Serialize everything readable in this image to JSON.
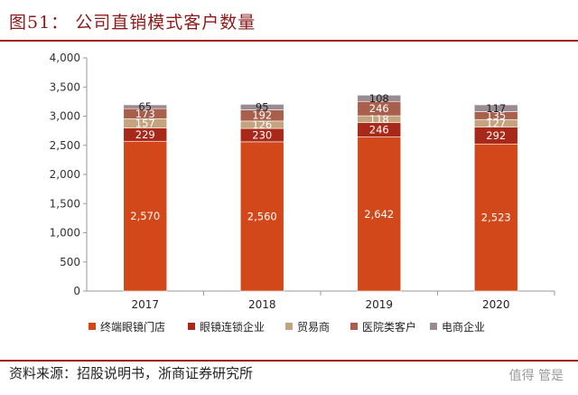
{
  "header": {
    "title": "图51：  公司直销模式客户数量"
  },
  "footer": {
    "source": "资料来源：招股说明书，浙商证券研究所",
    "watermark": "值得 管是"
  },
  "colors": {
    "s0": "#d2481a",
    "s1": "#a8281a",
    "s2": "#c4a37f",
    "s3": "#a8604d",
    "s4": "#9a8b93",
    "axis": "#9a9a9a",
    "rule": "#a01c1c"
  },
  "chart_data": {
    "type": "bar",
    "stacked": true,
    "title": "",
    "xlabel": "",
    "ylabel": "",
    "ylim": [
      0,
      4000
    ],
    "yticks": [
      "0",
      "500",
      "1,000",
      "1,500",
      "2,000",
      "2,500",
      "3,000",
      "3,500",
      "4,000"
    ],
    "ytick_values": [
      0,
      500,
      1000,
      1500,
      2000,
      2500,
      3000,
      3500,
      4000
    ],
    "categories": [
      "2017",
      "2018",
      "2019",
      "2020"
    ],
    "series": [
      {
        "name": "终端眼镜门店",
        "values": [
          2570,
          2560,
          2642,
          2523
        ],
        "labels": [
          "2,570",
          "2,560",
          "2,642",
          "2,523"
        ]
      },
      {
        "name": "眼镜连锁企业",
        "values": [
          229,
          230,
          246,
          292
        ],
        "labels": [
          "229",
          "230",
          "246",
          "292"
        ]
      },
      {
        "name": "贸易商",
        "values": [
          157,
          126,
          118,
          127
        ],
        "labels": [
          "157",
          "126",
          "118",
          "127"
        ]
      },
      {
        "name": "医院类客户",
        "values": [
          173,
          192,
          246,
          135
        ],
        "labels": [
          "173",
          "192",
          "246",
          "135"
        ]
      },
      {
        "name": "电商企业",
        "values": [
          65,
          95,
          108,
          117
        ],
        "labels": [
          "65",
          "95",
          "108",
          "117"
        ]
      }
    ],
    "legend": "bottom"
  }
}
